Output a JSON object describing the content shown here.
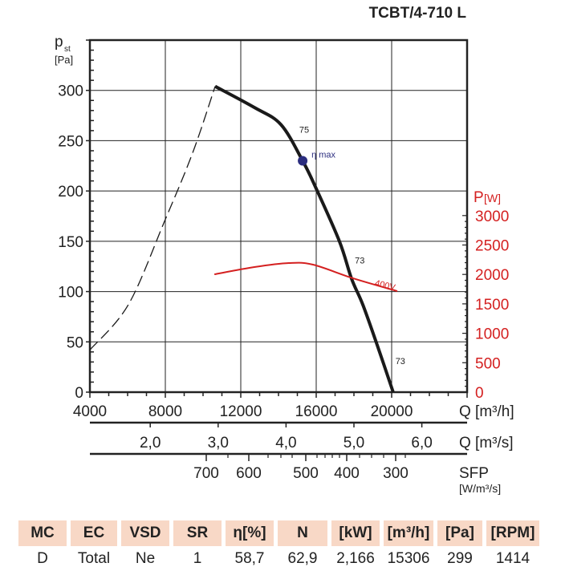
{
  "title": "TCBT/4-710 L",
  "chart_data": {
    "type": "line",
    "x_axis": {
      "label": "Q [m³/h]",
      "range": [
        4000,
        24000
      ],
      "ticks": [
        4000,
        8000,
        12000,
        16000,
        20000
      ],
      "tick_labels": [
        "4000",
        "8000",
        "12000",
        "16000",
        "20000"
      ]
    },
    "x_axis_2": {
      "label": "Q [m³/s]",
      "ticks": [
        2.0,
        3.0,
        4.0,
        5.0,
        6.0
      ],
      "tick_labels": [
        "2,0",
        "3,0",
        "4,0",
        "5,0",
        "6,0"
      ]
    },
    "x_axis_3": {
      "label": "SFP",
      "unit": "[W/m³/s]",
      "ticks": [
        700,
        600,
        500,
        400,
        300
      ],
      "tick_labels": [
        "700",
        "600",
        "500",
        "400",
        "300"
      ]
    },
    "y_axis": {
      "label": "p",
      "label_sub": "st",
      "unit": "[Pa]",
      "range": [
        0,
        350
      ],
      "ticks": [
        0,
        50,
        100,
        150,
        200,
        250,
        300
      ],
      "tick_labels": [
        "0",
        "50",
        "100",
        "150",
        "200",
        "250",
        "300"
      ]
    },
    "y_axis_right": {
      "label": "P",
      "unit": "[W]",
      "range": [
        0,
        3000
      ],
      "ticks": [
        0,
        500,
        1000,
        1500,
        2000,
        2500,
        3000
      ],
      "tick_labels": [
        "0",
        "500",
        "1000",
        "1500",
        "2000",
        "2500",
        "3000"
      ],
      "color": "#d42020"
    },
    "grid": true,
    "series": [
      {
        "kind": "pressure",
        "axis": "left",
        "style": "solid",
        "color": "#1a1a1a",
        "x": [
          10640,
          12720,
          14130,
          15280,
          15960,
          17230,
          17870,
          18470,
          19230,
          20080
        ],
        "y": [
          304,
          283,
          266,
          230,
          204,
          150,
          113,
          87,
          47,
          0
        ]
      },
      {
        "kind": "pressure-unstable",
        "axis": "left",
        "style": "dashed",
        "color": "#1a1a1a",
        "x": [
          4000,
          6040,
          7960,
          9450,
          10640
        ],
        "y": [
          42,
          87,
          170,
          238,
          304
        ]
      },
      {
        "name": "400V",
        "axis": "right",
        "style": "solid",
        "color": "#d42020",
        "x": [
          10600,
          12720,
          14550,
          15830,
          17960,
          20300
        ],
        "y": [
          2002,
          2125,
          2193,
          2166,
          1934,
          1716
        ]
      }
    ],
    "annotations": [
      {
        "text": "η max",
        "x": 15280,
        "y": 230,
        "marker": true,
        "color": "#2b2d7f"
      },
      {
        "text": "75",
        "x": 15100,
        "y": 258
      },
      {
        "text": "73",
        "x": 18050,
        "y": 128
      },
      {
        "text": "73",
        "x": 20200,
        "y": 28
      }
    ]
  },
  "table": {
    "headers": [
      "MC",
      "EC",
      "VSD",
      "SR",
      "η[%]",
      "N",
      "[kW]",
      "[m³/h]",
      "[Pa]",
      "[RPM]"
    ],
    "row": [
      "D",
      "Total",
      "Ne",
      "1",
      "58,7",
      "62,9",
      "2,166",
      "15306",
      "299",
      "1414"
    ],
    "header_color": "#f8d8c6"
  }
}
